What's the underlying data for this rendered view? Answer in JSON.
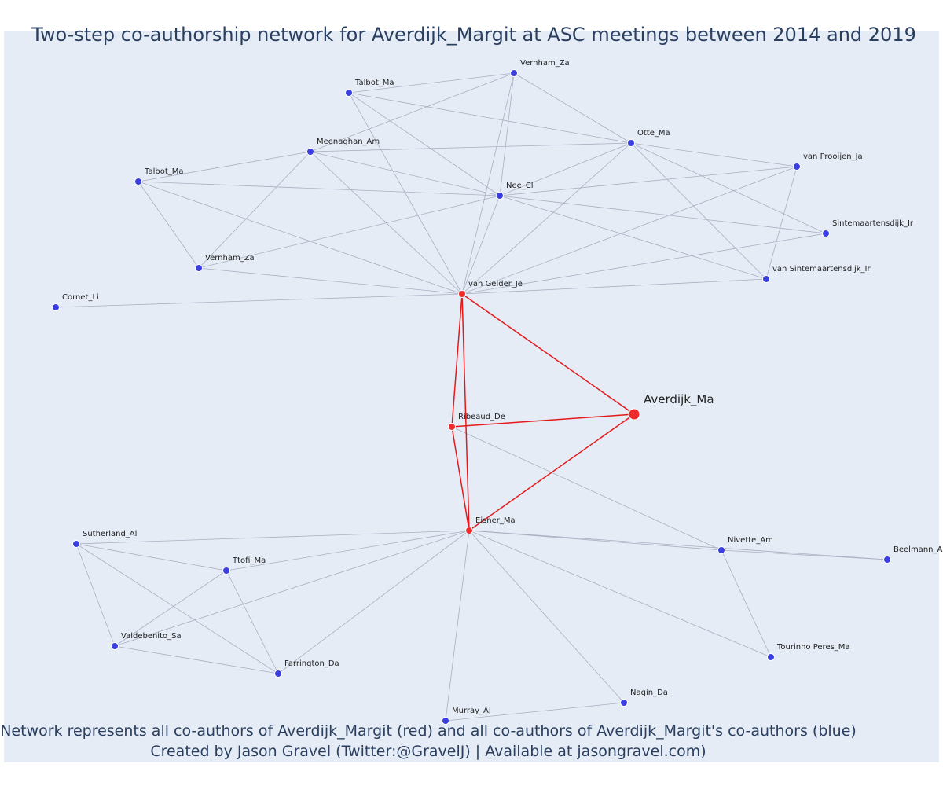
{
  "title": "Two-step co-authorship network for Averdijk_Margit at ASC meetings between 2014 and 2019",
  "caption_line1": "Network represents all co-authors of Averdijk_Margit (red) and all co-authors of Averdijk_Margit's co-authors (blue)",
  "caption_line2": "Created by Jason Gravel (Twitter:@GravelJ) | Available at jasongravel.com)",
  "colors": {
    "background": "#e5ecf6",
    "blue_node": "#3b3fe0",
    "red_node": "#ef2a2a",
    "grey_edge": "#a9afc0",
    "red_edge": "#e31a1c",
    "text": "#2a3f5f"
  },
  "nodes": [
    {
      "id": "vernham_za_top",
      "label": "Vernham_Za",
      "group": "blue"
    },
    {
      "id": "talbot_ma_top",
      "label": "Talbot_Ma",
      "group": "blue"
    },
    {
      "id": "otte_ma",
      "label": "Otte_Ma",
      "group": "blue"
    },
    {
      "id": "meenaghan_am",
      "label": "Meenaghan_Am",
      "group": "blue"
    },
    {
      "id": "van_prooijen_ja",
      "label": "van Prooijen_Ja",
      "group": "blue"
    },
    {
      "id": "talbot_ma_left",
      "label": "Talbot_Ma",
      "group": "blue"
    },
    {
      "id": "nee_cl",
      "label": "Nee_Cl",
      "group": "blue"
    },
    {
      "id": "sintemaartensdijk_ir",
      "label": "Sintemaartensdijk_Ir",
      "group": "blue"
    },
    {
      "id": "vernham_za_mid",
      "label": "Vernham_Za",
      "group": "blue"
    },
    {
      "id": "van_sintemaartensdijk_ir",
      "label": "van Sintemaartensdijk_Ir",
      "group": "blue"
    },
    {
      "id": "van_gelder_je",
      "label": "van Gelder_Je",
      "group": "red"
    },
    {
      "id": "cornet_li",
      "label": "Cornet_Li",
      "group": "blue"
    },
    {
      "id": "averdijk_ma",
      "label": "Averdijk_Ma",
      "group": "ego"
    },
    {
      "id": "ribeaud_de",
      "label": "Ribeaud_De",
      "group": "red"
    },
    {
      "id": "eisner_ma",
      "label": "Eisner_Ma",
      "group": "red"
    },
    {
      "id": "sutherland_al",
      "label": "Sutherland_Al",
      "group": "blue"
    },
    {
      "id": "nivette_am",
      "label": "Nivette_Am",
      "group": "blue"
    },
    {
      "id": "beelmann_a",
      "label": "Beelmann_A",
      "group": "blue"
    },
    {
      "id": "ttofi_ma",
      "label": "Ttofi_Ma",
      "group": "blue"
    },
    {
      "id": "valdebenito_sa",
      "label": "Valdebenito_Sa",
      "group": "blue"
    },
    {
      "id": "tourinho_peres_ma",
      "label": "Tourinho Peres_Ma",
      "group": "blue"
    },
    {
      "id": "farrington_da",
      "label": "Farrington_Da",
      "group": "blue"
    },
    {
      "id": "nagin_da",
      "label": "Nagin_Da",
      "group": "blue"
    },
    {
      "id": "murray_aj",
      "label": "Murray_Aj",
      "group": "blue"
    }
  ],
  "edges": [
    [
      "vernham_za_top",
      "talbot_ma_top"
    ],
    [
      "vernham_za_top",
      "meenaghan_am"
    ],
    [
      "vernham_za_top",
      "otte_ma"
    ],
    [
      "vernham_za_top",
      "nee_cl"
    ],
    [
      "vernham_za_top",
      "van_gelder_je"
    ],
    [
      "talbot_ma_top",
      "otte_ma"
    ],
    [
      "talbot_ma_top",
      "nee_cl"
    ],
    [
      "talbot_ma_top",
      "van_gelder_je"
    ],
    [
      "meenaghan_am",
      "otte_ma"
    ],
    [
      "meenaghan_am",
      "talbot_ma_left"
    ],
    [
      "meenaghan_am",
      "nee_cl"
    ],
    [
      "meenaghan_am",
      "vernham_za_mid"
    ],
    [
      "meenaghan_am",
      "van_gelder_je"
    ],
    [
      "otte_ma",
      "nee_cl"
    ],
    [
      "otte_ma",
      "van_prooijen_ja"
    ],
    [
      "otte_ma",
      "sintemaartensdijk_ir"
    ],
    [
      "otte_ma",
      "van_sintemaartensdijk_ir"
    ],
    [
      "otte_ma",
      "van_gelder_je"
    ],
    [
      "talbot_ma_left",
      "nee_cl"
    ],
    [
      "talbot_ma_left",
      "vernham_za_mid"
    ],
    [
      "talbot_ma_left",
      "van_gelder_je"
    ],
    [
      "nee_cl",
      "van_prooijen_ja"
    ],
    [
      "nee_cl",
      "sintemaartensdijk_ir"
    ],
    [
      "nee_cl",
      "van_sintemaartensdijk_ir"
    ],
    [
      "nee_cl",
      "vernham_za_mid"
    ],
    [
      "nee_cl",
      "van_gelder_je"
    ],
    [
      "van_prooijen_ja",
      "van_sintemaartensdijk_ir"
    ],
    [
      "van_prooijen_ja",
      "van_gelder_je"
    ],
    [
      "sintemaartensdijk_ir",
      "van_gelder_je"
    ],
    [
      "van_sintemaartensdijk_ir",
      "van_gelder_je"
    ],
    [
      "vernham_za_mid",
      "van_gelder_je"
    ],
    [
      "cornet_li",
      "van_gelder_je"
    ],
    [
      "ribeaud_de",
      "nivette_am"
    ],
    [
      "eisner_ma",
      "sutherland_al"
    ],
    [
      "eisner_ma",
      "ttofi_ma"
    ],
    [
      "eisner_ma",
      "valdebenito_sa"
    ],
    [
      "eisner_ma",
      "farrington_da"
    ],
    [
      "eisner_ma",
      "nivette_am"
    ],
    [
      "eisner_ma",
      "beelmann_a"
    ],
    [
      "eisner_ma",
      "tourinho_peres_ma"
    ],
    [
      "eisner_ma",
      "nagin_da"
    ],
    [
      "eisner_ma",
      "murray_aj"
    ],
    [
      "sutherland_al",
      "ttofi_ma"
    ],
    [
      "sutherland_al",
      "valdebenito_sa"
    ],
    [
      "sutherland_al",
      "farrington_da"
    ],
    [
      "ttofi_ma",
      "valdebenito_sa"
    ],
    [
      "ttofi_ma",
      "farrington_da"
    ],
    [
      "valdebenito_sa",
      "farrington_da"
    ],
    [
      "nivette_am",
      "beelmann_a"
    ],
    [
      "nivette_am",
      "tourinho_peres_ma"
    ],
    [
      "nagin_da",
      "murray_aj"
    ]
  ],
  "red_edges": [
    [
      "van_gelder_je",
      "averdijk_ma"
    ],
    [
      "van_gelder_je",
      "ribeaud_de"
    ],
    [
      "van_gelder_je",
      "eisner_ma"
    ],
    [
      "ribeaud_de",
      "averdijk_ma"
    ],
    [
      "ribeaud_de",
      "eisner_ma"
    ],
    [
      "eisner_ma",
      "averdijk_ma"
    ]
  ]
}
